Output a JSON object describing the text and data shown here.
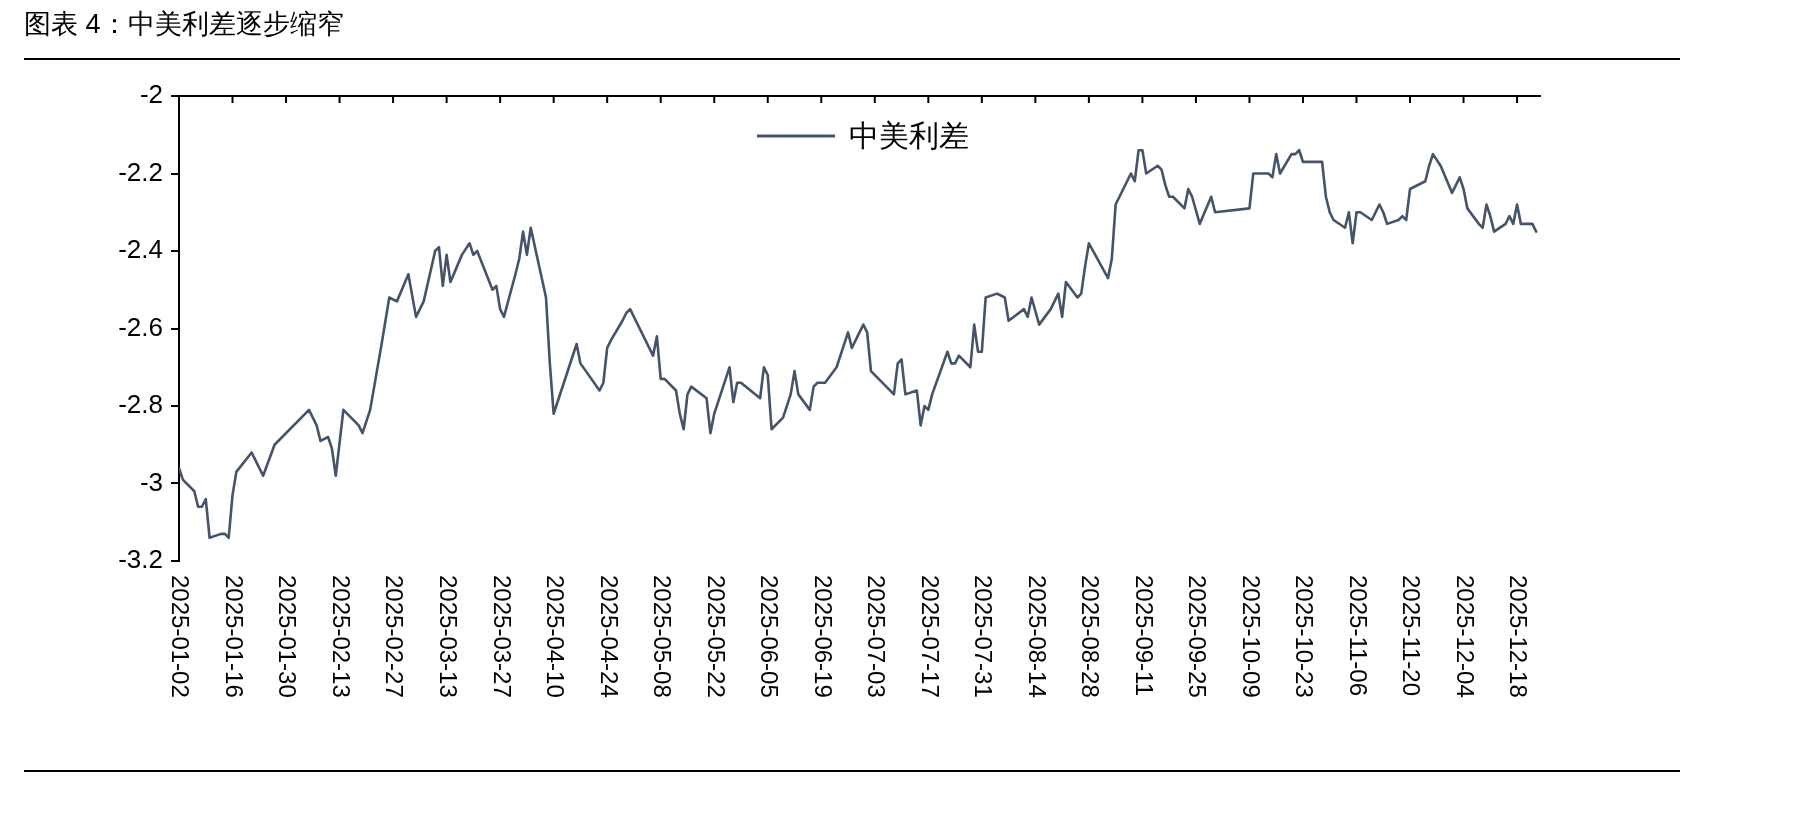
{
  "chart_data": {
    "type": "line",
    "title": "图表 4：中美利差逐步缩窄",
    "x": [
      "2025-01-02",
      "2025-01-03",
      "2025-01-06",
      "2025-01-07",
      "2025-01-08",
      "2025-01-09",
      "2025-01-10",
      "2025-01-13",
      "2025-01-14",
      "2025-01-15",
      "2025-01-16",
      "2025-01-17",
      "2025-01-21",
      "2025-01-24",
      "2025-01-27",
      "2025-02-05",
      "2025-02-07",
      "2025-02-08",
      "2025-02-10",
      "2025-02-11",
      "2025-02-12",
      "2025-02-14",
      "2025-02-18",
      "2025-02-19",
      "2025-02-21",
      "2025-02-24",
      "2025-02-26",
      "2025-02-28",
      "2025-03-03",
      "2025-03-05",
      "2025-03-07",
      "2025-03-10",
      "2025-03-11",
      "2025-03-12",
      "2025-03-13",
      "2025-03-14",
      "2025-03-17",
      "2025-03-19",
      "2025-03-20",
      "2025-03-21",
      "2025-03-25",
      "2025-03-26",
      "2025-03-27",
      "2025-03-28",
      "2025-03-31",
      "2025-04-01",
      "2025-04-02",
      "2025-04-03",
      "2025-04-04",
      "2025-04-08",
      "2025-04-09",
      "2025-04-10",
      "2025-04-16",
      "2025-04-17",
      "2025-04-22",
      "2025-04-23",
      "2025-04-24",
      "2025-04-25",
      "2025-04-28",
      "2025-04-29",
      "2025-04-30",
      "2025-05-06",
      "2025-05-07",
      "2025-05-08",
      "2025-05-09",
      "2025-05-12",
      "2025-05-13",
      "2025-05-14",
      "2025-05-15",
      "2025-05-16",
      "2025-05-20",
      "2025-05-21",
      "2025-05-22",
      "2025-05-23",
      "2025-05-26",
      "2025-05-27",
      "2025-05-28",
      "2025-05-29",
      "2025-06-03",
      "2025-06-04",
      "2025-06-05",
      "2025-06-06",
      "2025-06-09",
      "2025-06-11",
      "2025-06-12",
      "2025-06-13",
      "2025-06-16",
      "2025-06-17",
      "2025-06-18",
      "2025-06-20",
      "2025-06-23",
      "2025-06-26",
      "2025-06-27",
      "2025-06-30",
      "2025-07-01",
      "2025-07-02",
      "2025-07-08",
      "2025-07-09",
      "2025-07-10",
      "2025-07-11",
      "2025-07-14",
      "2025-07-15",
      "2025-07-16",
      "2025-07-17",
      "2025-07-18",
      "2025-07-22",
      "2025-07-23",
      "2025-07-24",
      "2025-07-25",
      "2025-07-28",
      "2025-07-29",
      "2025-07-30",
      "2025-07-31",
      "2025-08-01",
      "2025-08-04",
      "2025-08-06",
      "2025-08-07",
      "2025-08-11",
      "2025-08-12",
      "2025-08-13",
      "2025-08-15",
      "2025-08-18",
      "2025-08-20",
      "2025-08-21",
      "2025-08-22",
      "2025-08-25",
      "2025-08-26",
      "2025-08-27",
      "2025-08-28",
      "2025-09-02",
      "2025-09-03",
      "2025-09-04",
      "2025-09-08",
      "2025-09-09",
      "2025-09-10",
      "2025-09-11",
      "2025-09-12",
      "2025-09-15",
      "2025-09-16",
      "2025-09-17",
      "2025-09-18",
      "2025-09-19",
      "2025-09-22",
      "2025-09-23",
      "2025-09-24",
      "2025-09-26",
      "2025-09-29",
      "2025-09-30",
      "2025-10-09",
      "2025-10-10",
      "2025-10-14",
      "2025-10-15",
      "2025-10-16",
      "2025-10-17",
      "2025-10-20",
      "2025-10-21",
      "2025-10-22",
      "2025-10-23",
      "2025-10-28",
      "2025-10-29",
      "2025-10-30",
      "2025-10-31",
      "2025-11-03",
      "2025-11-04",
      "2025-11-05",
      "2025-11-06",
      "2025-11-07",
      "2025-11-10",
      "2025-11-12",
      "2025-11-13",
      "2025-11-14",
      "2025-11-17",
      "2025-11-18",
      "2025-11-19",
      "2025-11-20",
      "2025-11-24",
      "2025-11-25",
      "2025-11-26",
      "2025-11-28",
      "2025-12-01",
      "2025-12-03",
      "2025-12-04",
      "2025-12-05",
      "2025-12-08",
      "2025-12-09",
      "2025-12-10",
      "2025-12-11",
      "2025-12-12",
      "2025-12-15",
      "2025-12-16",
      "2025-12-17",
      "2025-12-18",
      "2025-12-19",
      "2025-12-22",
      "2025-12-23"
    ],
    "series": [
      {
        "name": "中美利差",
        "color": "#44546a",
        "values": [
          -2.96,
          -2.99,
          -3.02,
          -3.06,
          -3.06,
          -3.04,
          -3.14,
          -3.13,
          -3.13,
          -3.14,
          -3.03,
          -2.97,
          -2.92,
          -2.98,
          -2.9,
          -2.81,
          -2.85,
          -2.89,
          -2.88,
          -2.91,
          -2.98,
          -2.81,
          -2.85,
          -2.87,
          -2.81,
          -2.64,
          -2.52,
          -2.53,
          -2.46,
          -2.57,
          -2.53,
          -2.4,
          -2.39,
          -2.49,
          -2.41,
          -2.48,
          -2.41,
          -2.38,
          -2.41,
          -2.4,
          -2.5,
          -2.49,
          -2.55,
          -2.57,
          -2.46,
          -2.42,
          -2.35,
          -2.41,
          -2.34,
          -2.52,
          -2.69,
          -2.82,
          -2.64,
          -2.69,
          -2.76,
          -2.74,
          -2.65,
          -2.63,
          -2.58,
          -2.56,
          -2.55,
          -2.67,
          -2.62,
          -2.73,
          -2.73,
          -2.76,
          -2.82,
          -2.86,
          -2.77,
          -2.75,
          -2.78,
          -2.87,
          -2.82,
          -2.79,
          -2.7,
          -2.79,
          -2.74,
          -2.74,
          -2.78,
          -2.7,
          -2.72,
          -2.86,
          -2.83,
          -2.77,
          -2.71,
          -2.77,
          -2.81,
          -2.75,
          -2.74,
          -2.74,
          -2.7,
          -2.61,
          -2.65,
          -2.59,
          -2.61,
          -2.71,
          -2.77,
          -2.69,
          -2.68,
          -2.77,
          -2.76,
          -2.85,
          -2.8,
          -2.81,
          -2.77,
          -2.66,
          -2.69,
          -2.69,
          -2.67,
          -2.7,
          -2.59,
          -2.66,
          -2.66,
          -2.52,
          -2.51,
          -2.52,
          -2.58,
          -2.55,
          -2.57,
          -2.52,
          -2.59,
          -2.55,
          -2.51,
          -2.57,
          -2.48,
          -2.52,
          -2.51,
          -2.44,
          -2.38,
          -2.47,
          -2.42,
          -2.28,
          -2.2,
          -2.22,
          -2.14,
          -2.14,
          -2.2,
          -2.18,
          -2.19,
          -2.23,
          -2.26,
          -2.26,
          -2.29,
          -2.24,
          -2.26,
          -2.33,
          -2.26,
          -2.3,
          -2.29,
          -2.2,
          -2.2,
          -2.21,
          -2.15,
          -2.2,
          -2.15,
          -2.15,
          -2.14,
          -2.17,
          -2.17,
          -2.26,
          -2.3,
          -2.32,
          -2.34,
          -2.3,
          -2.38,
          -2.3,
          -2.3,
          -2.32,
          -2.28,
          -2.3,
          -2.33,
          -2.32,
          -2.31,
          -2.32,
          -2.24,
          -2.22,
          -2.18,
          -2.15,
          -2.18,
          -2.25,
          -2.21,
          -2.24,
          -2.29,
          -2.33,
          -2.34,
          -2.28,
          -2.31,
          -2.35,
          -2.33,
          -2.31,
          -2.33,
          -2.28,
          -2.33,
          -2.33,
          -2.35
        ]
      }
    ],
    "xlim": [
      "2025-01-02",
      "2025-12-24"
    ],
    "xticks": [
      "2025-01-02",
      "2025-01-16",
      "2025-01-30",
      "2025-02-13",
      "2025-02-27",
      "2025-03-13",
      "2025-03-27",
      "2025-04-10",
      "2025-04-24",
      "2025-05-08",
      "2025-05-22",
      "2025-06-05",
      "2025-06-19",
      "2025-07-03",
      "2025-07-17",
      "2025-07-31",
      "2025-08-14",
      "2025-08-28",
      "2025-09-11",
      "2025-09-25",
      "2025-10-09",
      "2025-10-23",
      "2025-11-06",
      "2025-11-20",
      "2025-12-04",
      "2025-12-18"
    ],
    "ylim": [
      -3.2,
      -2
    ],
    "yticks": [
      -2,
      -2.2,
      -2.4,
      -2.6,
      -2.8,
      -3,
      -3.2
    ],
    "legend": "top",
    "marker": "none",
    "line_style": "solid"
  }
}
